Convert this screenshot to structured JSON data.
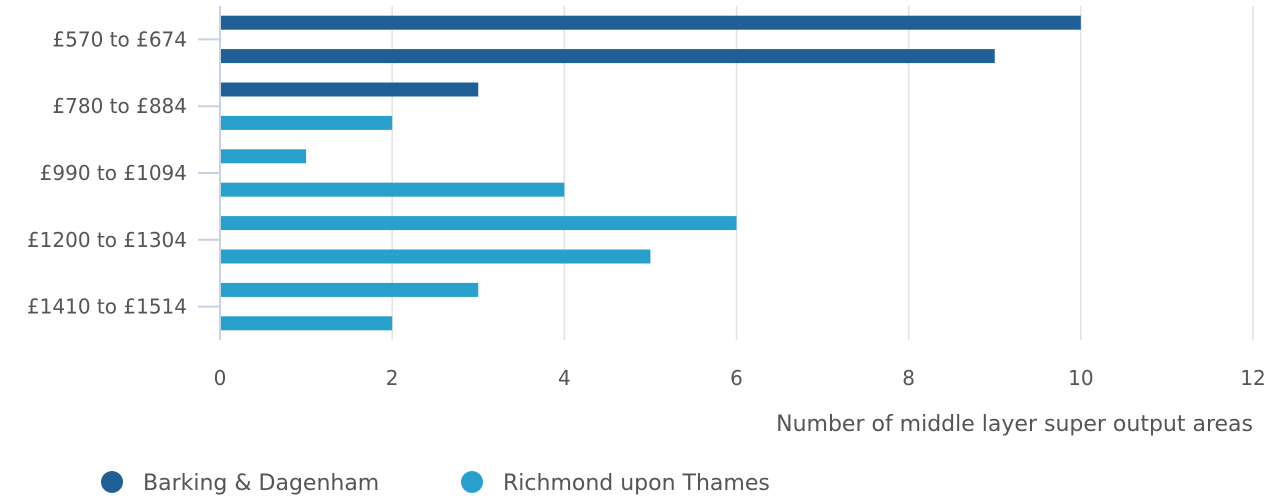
{
  "chart_data": {
    "type": "bar",
    "orientation": "horizontal",
    "title": "",
    "xlabel": "Number of middle layer super output areas",
    "xlim": [
      0,
      12
    ],
    "xticks": [
      0,
      2,
      4,
      6,
      8,
      10,
      12
    ],
    "ytick_labels": [
      "£570 to £674",
      "£780 to £884",
      "£990 to £1094",
      "£1200 to £1304",
      "£1410 to £1514"
    ],
    "grid": "vertical",
    "legend_position": "bottom-left",
    "bars": [
      {
        "series": "Barking & Dagenham",
        "value": 10
      },
      {
        "series": "Barking & Dagenham",
        "value": 9
      },
      {
        "series": "Barking & Dagenham",
        "value": 3
      },
      {
        "series": "Richmond upon Thames",
        "value": 2
      },
      {
        "series": "Richmond upon Thames",
        "value": 1
      },
      {
        "series": "Richmond upon Thames",
        "value": 4
      },
      {
        "series": "Richmond upon Thames",
        "value": 6
      },
      {
        "series": "Richmond upon Thames",
        "value": 5
      },
      {
        "series": "Richmond upon Thames",
        "value": 3
      },
      {
        "series": "Richmond upon Thames",
        "value": 2
      }
    ],
    "series": [
      {
        "name": "Barking & Dagenham",
        "color": "#205f96"
      },
      {
        "name": "Richmond upon Thames",
        "color": "#27a0cc"
      }
    ]
  }
}
